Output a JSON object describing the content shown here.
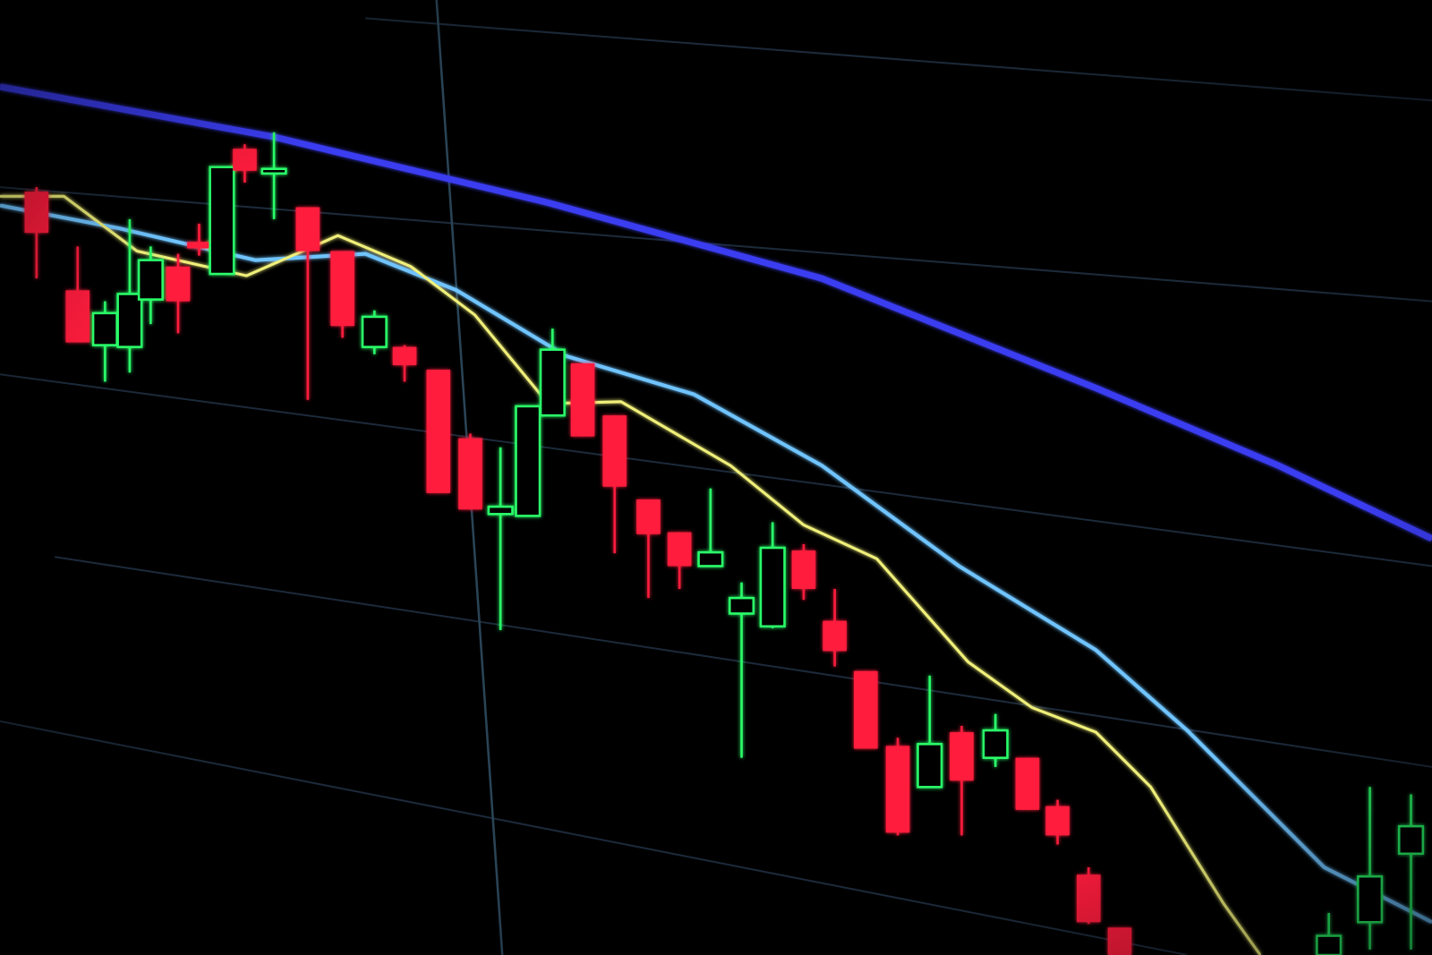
{
  "scene": {
    "subject": "candlestick-chart-on-screen",
    "colors": {
      "background": "#000000",
      "bearish_candle": "#ff1f3d",
      "bullish_candle": "#2bff6a",
      "slow_average_line": "#3b3cf0",
      "mid_average_line": "#6fc4ff",
      "fast_average_line": "#f0f07a",
      "grid": "#1c2a3a"
    }
  }
}
